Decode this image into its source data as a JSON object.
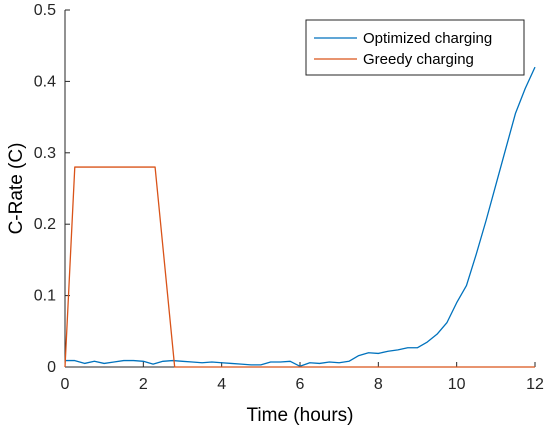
{
  "chart_data": {
    "type": "line",
    "xlabel": "Time (hours)",
    "ylabel": "C-Rate (C)",
    "xlim": [
      0,
      12
    ],
    "ylim": [
      0,
      0.5
    ],
    "x_ticks": [
      0,
      2,
      4,
      6,
      8,
      10,
      12
    ],
    "y_ticks": [
      0,
      0.1,
      0.2,
      0.3,
      0.4,
      0.5
    ],
    "x_tick_labels": [
      "0",
      "2",
      "4",
      "6",
      "8",
      "10",
      "12"
    ],
    "y_tick_labels": [
      "0",
      "0.1",
      "0.2",
      "0.3",
      "0.4",
      "0.5"
    ],
    "legend_position": "top-right",
    "series": [
      {
        "name": "Optimized charging",
        "color": "#0072BD",
        "x": [
          0,
          0.25,
          0.5,
          0.75,
          1.0,
          1.25,
          1.5,
          1.75,
          2.0,
          2.25,
          2.5,
          2.75,
          3.0,
          3.25,
          3.5,
          3.75,
          4.0,
          4.25,
          4.5,
          4.75,
          5.0,
          5.25,
          5.5,
          5.75,
          6.0,
          6.25,
          6.5,
          6.75,
          7.0,
          7.25,
          7.5,
          7.75,
          8.0,
          8.25,
          8.5,
          8.75,
          9.0,
          9.25,
          9.5,
          9.75,
          10.0,
          10.25,
          10.5,
          10.75,
          11.0,
          11.25,
          11.5,
          11.75,
          12.0
        ],
        "y": [
          0.009,
          0.009,
          0.005,
          0.008,
          0.005,
          0.007,
          0.009,
          0.009,
          0.008,
          0.004,
          0.008,
          0.009,
          0.008,
          0.007,
          0.006,
          0.007,
          0.006,
          0.005,
          0.004,
          0.003,
          0.003,
          0.007,
          0.007,
          0.008,
          0.001,
          0.006,
          0.005,
          0.007,
          0.006,
          0.008,
          0.016,
          0.02,
          0.019,
          0.022,
          0.024,
          0.027,
          0.027,
          0.035,
          0.046,
          0.062,
          0.09,
          0.114,
          0.158,
          0.205,
          0.255,
          0.305,
          0.355,
          0.39,
          0.42
        ]
      },
      {
        "name": "Greedy charging",
        "color": "#D95319",
        "x": [
          0,
          0.25,
          2.3,
          2.8,
          12
        ],
        "y": [
          0,
          0.28,
          0.28,
          0,
          0
        ]
      }
    ]
  }
}
